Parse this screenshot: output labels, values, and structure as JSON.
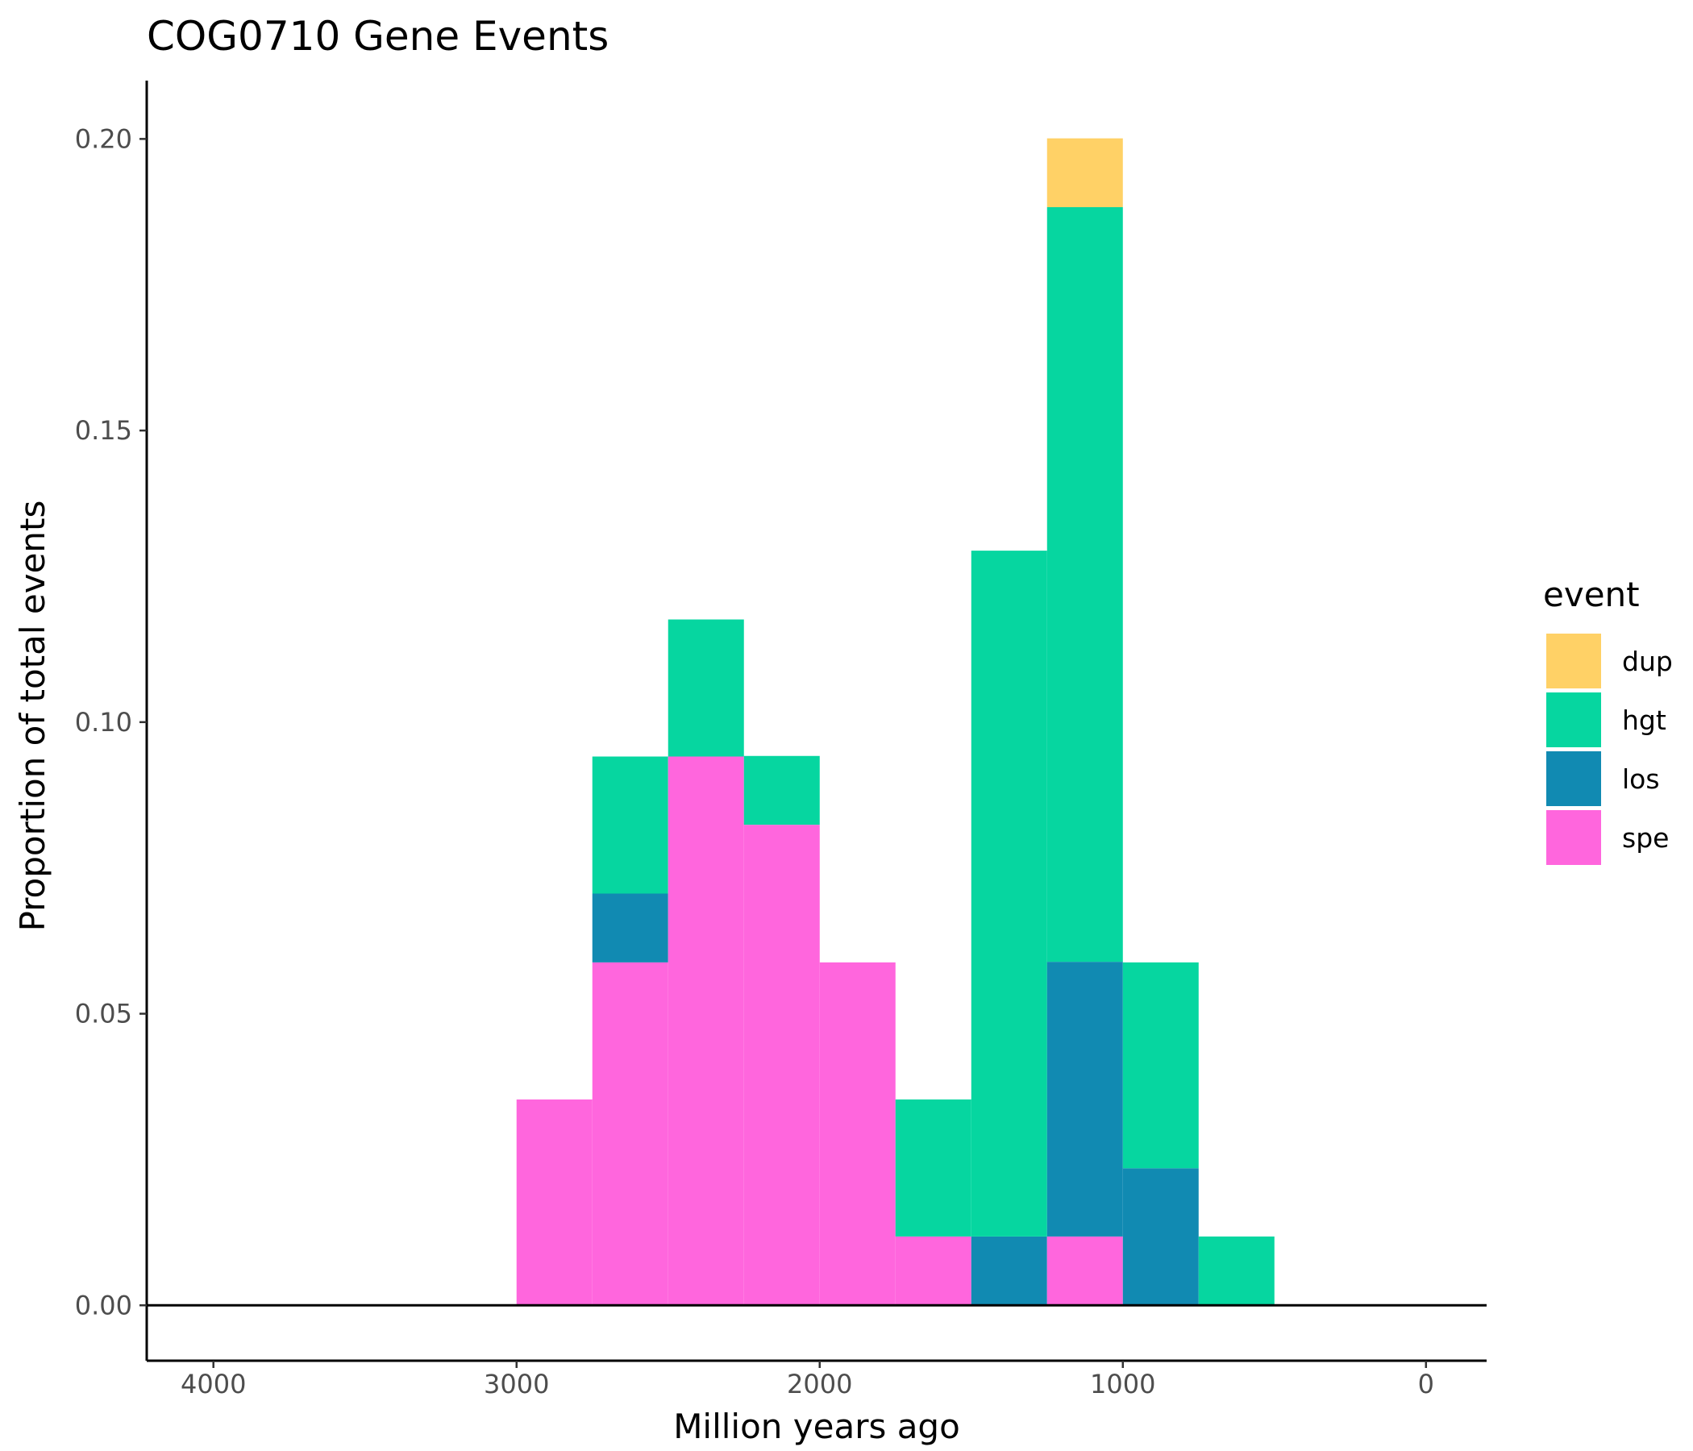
{
  "chart_data": {
    "type": "bar",
    "stacked": true,
    "title": "COG0710 Gene Events",
    "xlabel": "Million years ago",
    "ylabel": "Proportion of total events",
    "x_reversed": true,
    "xlim": [
      4220,
      -200
    ],
    "ylim": [
      -0.0095,
      0.21
    ],
    "x_ticks": [
      4000,
      3000,
      2000,
      1000,
      0
    ],
    "x_tick_labels": [
      "4000",
      "3000",
      "2000",
      "1000",
      "0"
    ],
    "y_ticks": [
      0,
      0.05,
      0.1,
      0.15,
      0.2
    ],
    "y_tick_labels": [
      "0.00",
      "0.05",
      "0.10",
      "0.15",
      "0.20"
    ],
    "bin_width": 250,
    "bin_starts": [
      3000,
      2750,
      2500,
      2250,
      2000,
      1750,
      1500,
      1250,
      1000,
      750
    ],
    "series": [
      {
        "name": "spe",
        "color": "#FF66DD",
        "values": [
          0.0353,
          0.0588,
          0.0941,
          0.0824,
          0.0588,
          0.0118,
          0,
          0.0118,
          0,
          0
        ]
      },
      {
        "name": "los",
        "color": "#118AB2",
        "values": [
          0,
          0.0118,
          0,
          0,
          0,
          0,
          0.0118,
          0.0471,
          0.0235,
          0
        ]
      },
      {
        "name": "hgt",
        "color": "#06D6A0",
        "values": [
          0,
          0.0235,
          0.0235,
          0.0118,
          0,
          0.0235,
          0.1176,
          0.1294,
          0.0353,
          0.0118
        ]
      },
      {
        "name": "dup",
        "color": "#FFD166",
        "values": [
          0,
          0,
          0,
          0,
          0,
          0,
          0,
          0.0118,
          0,
          0
        ]
      }
    ],
    "legend": {
      "title": "event",
      "placement": "right",
      "entries": [
        {
          "label": "dup",
          "color": "#FFD166"
        },
        {
          "label": "hgt",
          "color": "#06D6A0"
        },
        {
          "label": "los",
          "color": "#118AB2"
        },
        {
          "label": "spe",
          "color": "#FF66DD"
        }
      ]
    }
  }
}
